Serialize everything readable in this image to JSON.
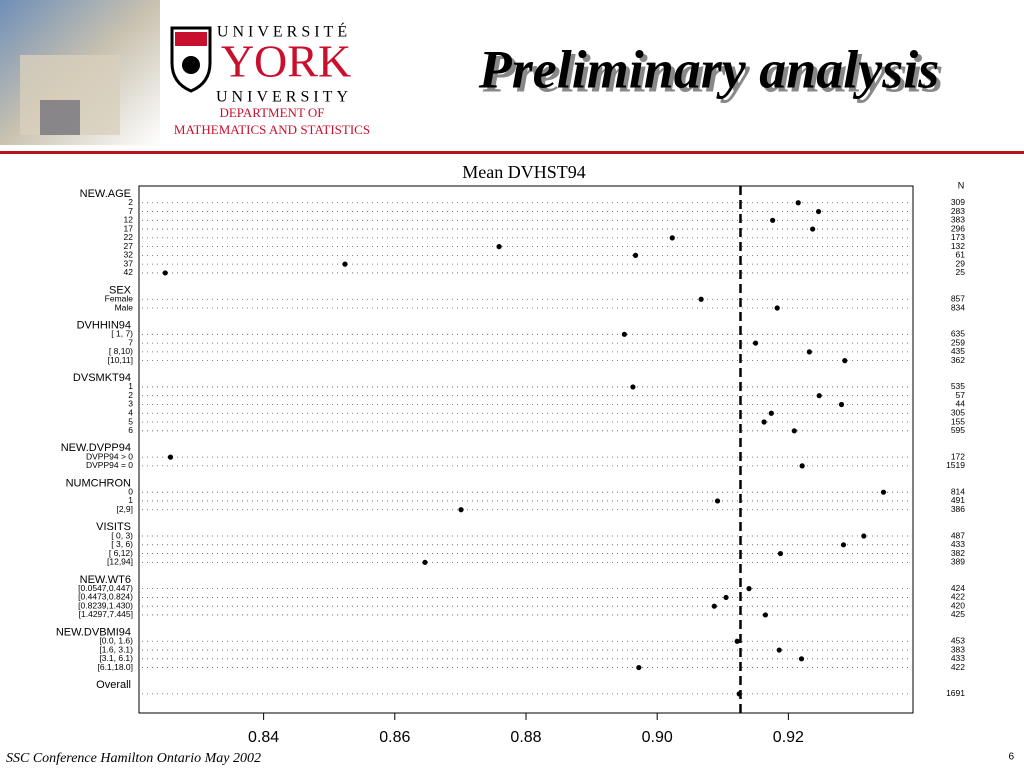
{
  "header": {
    "university_top": "UNIVERSITÉ",
    "university_name": "YORK",
    "university_bottom": "UNIVERSITY",
    "department_line1": "DEPARTMENT OF",
    "department_line2": "MATHEMATICS AND STATISTICS",
    "title": "Preliminary analysis"
  },
  "footer": {
    "text": "SSC Conference Hamilton Ontario  May 2002",
    "page": "6"
  },
  "chart_data": {
    "type": "dot",
    "title": "Mean DVHST94",
    "n_label": "N",
    "xlim": [
      0.821,
      0.939
    ],
    "xticks": [
      0.84,
      0.86,
      0.88,
      {
        "value": 0.9,
        "label": "0.90"
      },
      0.92
    ],
    "ref_line": 0.9127,
    "groups": [
      {
        "name": "NEW.AGE",
        "labels": [
          "2",
          "7",
          "12",
          "17",
          "22",
          "27",
          "32",
          "37",
          "42"
        ],
        "values": [
          0.9215,
          0.9246,
          0.9176,
          0.9237,
          0.9023,
          0.8759,
          0.8967,
          0.8524,
          0.825
        ],
        "n": [
          309,
          283,
          383,
          296,
          173,
          132,
          61,
          29,
          25
        ]
      },
      {
        "name": "SEX",
        "labels": [
          "Female",
          "Male"
        ],
        "values": [
          0.9067,
          0.9183
        ],
        "n": [
          857,
          834
        ]
      },
      {
        "name": "DVHHIN94",
        "labels": [
          "[ 1, 7)",
          "7",
          "[ 8,10)",
          "[10,11]"
        ],
        "values": [
          0.895,
          0.915,
          0.9232,
          0.9286
        ],
        "n": [
          635,
          259,
          435,
          362
        ]
      },
      {
        "name": "DVSMKT94",
        "labels": [
          "1",
          "2",
          "3",
          "4",
          "5",
          "6"
        ],
        "values": [
          0.8963,
          0.9247,
          0.9281,
          0.9174,
          0.9163,
          0.9209
        ],
        "n": [
          535,
          57,
          44,
          305,
          155,
          595
        ]
      },
      {
        "name": "NEW.DVPP94",
        "labels": [
          "DVPP94 > 0",
          "DVPP94 = 0"
        ],
        "values": [
          0.8258,
          0.9221
        ],
        "n": [
          172,
          1519
        ]
      },
      {
        "name": "NUMCHRON",
        "labels": [
          "0",
          "1",
          "[2,9]"
        ],
        "values": [
          0.9345,
          0.9092,
          0.8701
        ],
        "n": [
          814,
          491,
          386
        ]
      },
      {
        "name": "VISITS",
        "labels": [
          "[ 0, 3)",
          "[ 3, 6)",
          "[ 6,12)",
          "[12,94]"
        ],
        "values": [
          0.9315,
          0.9284,
          0.9188,
          0.8646
        ],
        "n": [
          487,
          433,
          382,
          389
        ]
      },
      {
        "name": "NEW.WT6",
        "labels": [
          "[0.0547,0.447)",
          "[0.4473,0.824)",
          "[0.8239,1.430)",
          "[1.4297,7.445]"
        ],
        "values": [
          0.914,
          0.9105,
          0.9087,
          0.9165
        ],
        "n": [
          424,
          422,
          420,
          425
        ]
      },
      {
        "name": "NEW.DVBMI94",
        "labels": [
          "[0.0, 1.6)",
          "[1.6, 3.1)",
          "[3.1, 6.1)",
          "[6.1,18.0]"
        ],
        "values": [
          0.9122,
          0.9186,
          0.922,
          0.8972
        ],
        "n": [
          453,
          383,
          433,
          422
        ]
      },
      {
        "name": "Overall",
        "labels": [
          null
        ],
        "values": [
          0.9125
        ],
        "n": [
          1691
        ]
      }
    ]
  }
}
